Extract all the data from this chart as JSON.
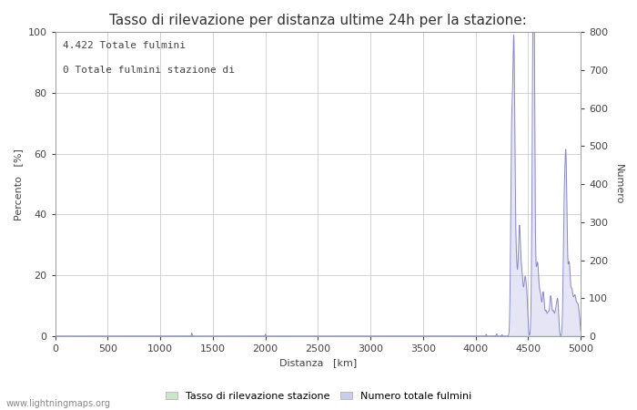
{
  "title": "Tasso di rilevazione per distanza ultime 24h per la stazione:",
  "annotation_line1": "4.422 Totale fulmini",
  "annotation_line2": "0 Totale fulmini stazione di",
  "xlabel": "Distanza   [km]",
  "ylabel_left": "Percento   [%]",
  "ylabel_right": "Numero",
  "xlim": [
    0,
    5000
  ],
  "ylim_left": [
    0,
    100
  ],
  "ylim_right": [
    0,
    800
  ],
  "xticks": [
    0,
    500,
    1000,
    1500,
    2000,
    2500,
    3000,
    3500,
    4000,
    4500,
    5000
  ],
  "yticks_left": [
    0,
    20,
    40,
    60,
    80,
    100
  ],
  "yticks_right": [
    0,
    100,
    200,
    300,
    400,
    500,
    600,
    700,
    800
  ],
  "background_color": "#ffffff",
  "plot_bg_color": "#ffffff",
  "grid_color": "#cccccc",
  "line_color": "#8888cc",
  "fill_color": "#ccccee",
  "legend_label_green": "Tasso di rilevazione stazione",
  "legend_label_blue": "Numero totale fulmini",
  "legend_color_green": "#c8e8c8",
  "legend_color_blue": "#ccccee",
  "watermark": "www.lightningmaps.org",
  "title_fontsize": 11,
  "axis_fontsize": 8,
  "label_fontsize": 8,
  "annotation_fontsize": 8
}
